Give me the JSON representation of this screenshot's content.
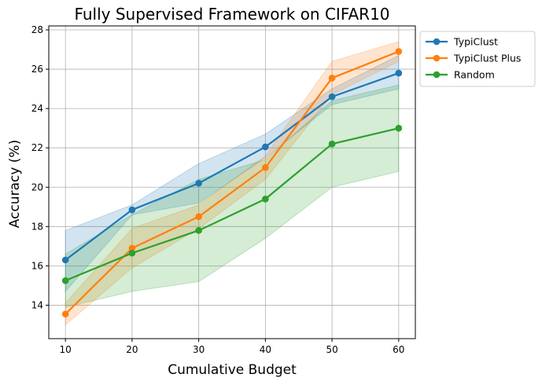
{
  "chart_data": {
    "type": "line",
    "title": "Fully Supervised Framework on CIFAR10",
    "xlabel": "Cumulative Budget",
    "ylabel": "Accuracy (%)",
    "x": [
      10,
      20,
      30,
      40,
      50,
      60
    ],
    "xlim": [
      7.5,
      62.5
    ],
    "ylim": [
      12.3,
      28.2
    ],
    "xticks": [
      "10",
      "20",
      "30",
      "40",
      "50",
      "60"
    ],
    "yticks": [
      "14",
      "16",
      "18",
      "20",
      "22",
      "24",
      "26",
      "28"
    ],
    "grid": true,
    "legend_position": "outside-right",
    "series": [
      {
        "name": "TypiClust",
        "color": "#1f77b4",
        "values": [
          16.3,
          18.85,
          20.2,
          22.05,
          24.6,
          25.8
        ],
        "lower": [
          14.7,
          18.6,
          19.2,
          21.5,
          24.2,
          25.0
        ],
        "upper": [
          17.8,
          19.1,
          21.2,
          22.7,
          25.0,
          26.7
        ]
      },
      {
        "name": "TypiClust Plus",
        "color": "#ff7f0e",
        "values": [
          13.55,
          16.9,
          18.5,
          21.0,
          25.55,
          26.9
        ],
        "lower": [
          13.0,
          15.9,
          17.9,
          20.4,
          24.7,
          26.4
        ],
        "upper": [
          14.1,
          17.9,
          19.1,
          21.6,
          26.4,
          27.4
        ]
      },
      {
        "name": "Random",
        "color": "#2ca02c",
        "values": [
          15.25,
          16.65,
          17.8,
          19.4,
          22.2,
          23.0
        ],
        "lower": [
          13.9,
          14.7,
          15.2,
          17.4,
          20.0,
          20.8
        ],
        "upper": [
          16.6,
          18.6,
          20.4,
          21.4,
          24.4,
          25.2
        ]
      }
    ]
  }
}
